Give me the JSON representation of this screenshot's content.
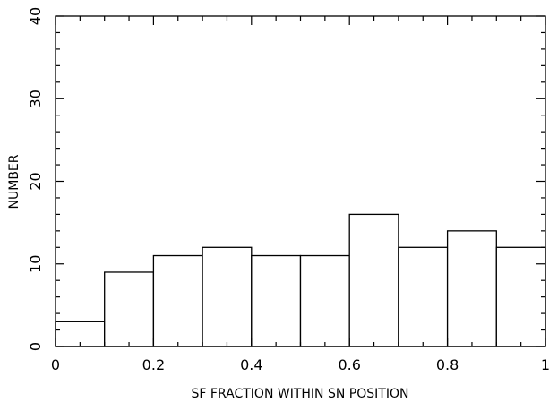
{
  "chart_data": {
    "type": "bar",
    "variant": "histogram",
    "xlabel": "SF FRACTION WITHIN SN POSITION",
    "ylabel": "NUMBER",
    "xlim": [
      0,
      1
    ],
    "ylim": [
      0,
      40
    ],
    "bin_edges": [
      0,
      0.1,
      0.2,
      0.3,
      0.4,
      0.5,
      0.6,
      0.7,
      0.8,
      0.9,
      1.0
    ],
    "values": [
      3,
      9,
      11,
      12,
      11,
      11,
      16,
      12,
      14,
      12
    ],
    "x_ticks": [
      {
        "value": 0,
        "label": "0"
      },
      {
        "value": 0.2,
        "label": "0.2"
      },
      {
        "value": 0.4,
        "label": "0.4"
      },
      {
        "value": 0.6,
        "label": "0.6"
      },
      {
        "value": 0.8,
        "label": "0.8"
      },
      {
        "value": 1,
        "label": "1"
      }
    ],
    "y_ticks": [
      {
        "value": 0,
        "label": "0"
      },
      {
        "value": 10,
        "label": "10"
      },
      {
        "value": 20,
        "label": "20"
      },
      {
        "value": 30,
        "label": "30"
      },
      {
        "value": 40,
        "label": "40"
      }
    ],
    "grid": false,
    "legend": "none",
    "colors": {
      "line": "#000000",
      "fill": "#ffffff",
      "background": "#ffffff"
    }
  }
}
